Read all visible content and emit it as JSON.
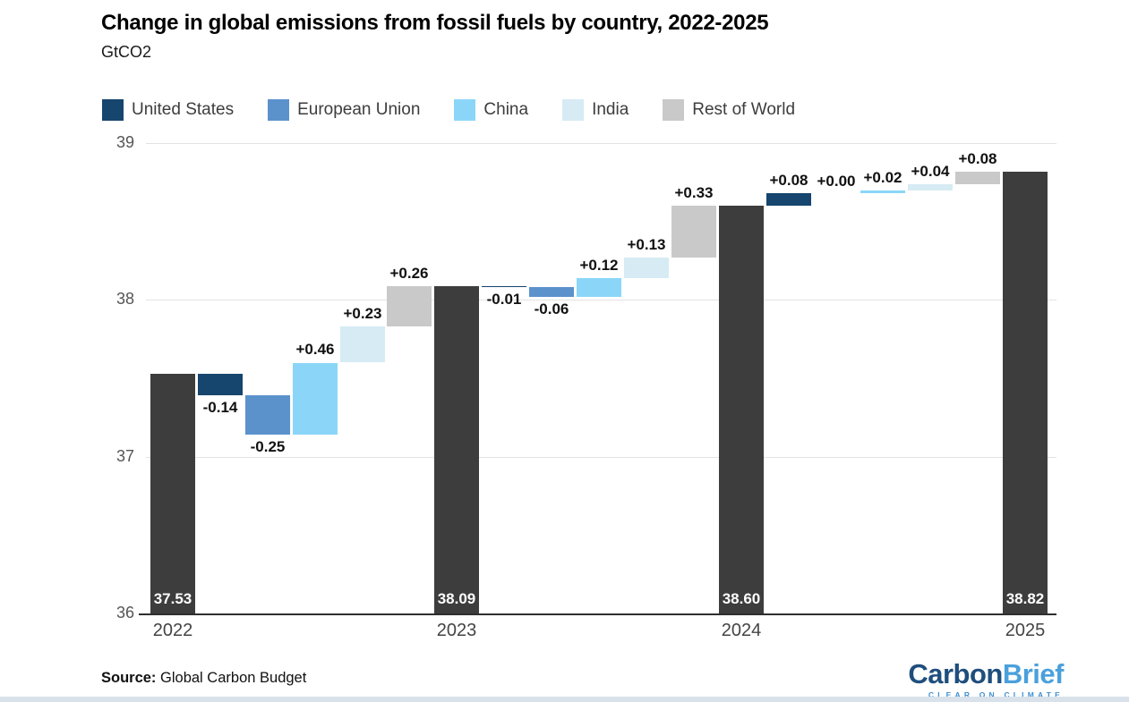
{
  "header": {
    "title": "Change in global emissions from fossil fuels by country, 2022-2025",
    "subtitle": "GtCO2"
  },
  "legend": [
    {
      "label": "United States",
      "color": "#16456d"
    },
    {
      "label": "European Union",
      "color": "#5b92cc"
    },
    {
      "label": "China",
      "color": "#8bd6f8"
    },
    {
      "label": "India",
      "color": "#d6ebf4"
    },
    {
      "label": "Rest of World",
      "color": "#c9c9c9"
    }
  ],
  "colors": {
    "total_bar": "#3d3d3d",
    "gridline": "#e3e3e3",
    "axis_line": "#2f2f2f",
    "delta_label": "#111111",
    "total_label": "#ffffff"
  },
  "chart_data": {
    "type": "bar",
    "variant": "waterfall",
    "title": "Change in global emissions from fossil fuels by country, 2022-2025",
    "ylabel": "GtCO2",
    "ylim": [
      36,
      39
    ],
    "yticks": [
      36,
      37,
      38,
      39
    ],
    "xticks": [
      "2022",
      "2023",
      "2024",
      "2025"
    ],
    "grid": "horizontal",
    "legend_position": "top",
    "totals": [
      {
        "year": "2022",
        "value": 37.53
      },
      {
        "year": "2023",
        "value": 38.09
      },
      {
        "year": "2024",
        "value": 38.6
      },
      {
        "year": "2025",
        "value": 38.82
      }
    ],
    "series_order": [
      "United States",
      "European Union",
      "China",
      "India",
      "Rest of World"
    ],
    "deltas_by_period": [
      {
        "period": "2022-2023",
        "United States": -0.14,
        "European Union": -0.25,
        "China": 0.46,
        "India": 0.23,
        "Rest of World": 0.26
      },
      {
        "period": "2023-2024",
        "United States": -0.01,
        "European Union": -0.06,
        "China": 0.12,
        "India": 0.13,
        "Rest of World": 0.33
      },
      {
        "period": "2024-2025",
        "United States": 0.08,
        "European Union": 0.0,
        "China": 0.02,
        "India": 0.04,
        "Rest of World": 0.08
      }
    ],
    "columns": [
      {
        "kind": "total",
        "series": "Total",
        "start": 36,
        "end": 37.53,
        "label": "37.53",
        "axis_label": "2022"
      },
      {
        "kind": "delta",
        "series": "United States",
        "start": 37.53,
        "end": 37.39,
        "label": "-0.14"
      },
      {
        "kind": "delta",
        "series": "European Union",
        "start": 37.39,
        "end": 37.14,
        "label": "-0.25"
      },
      {
        "kind": "delta",
        "series": "China",
        "start": 37.14,
        "end": 37.6,
        "label": "+0.46"
      },
      {
        "kind": "delta",
        "series": "India",
        "start": 37.6,
        "end": 37.83,
        "label": "+0.23"
      },
      {
        "kind": "delta",
        "series": "Rest of World",
        "start": 37.83,
        "end": 38.09,
        "label": "+0.26"
      },
      {
        "kind": "total",
        "series": "Total",
        "start": 36,
        "end": 38.09,
        "label": "38.09",
        "axis_label": "2023"
      },
      {
        "kind": "delta",
        "series": "United States",
        "start": 38.09,
        "end": 38.08,
        "label": "-0.01"
      },
      {
        "kind": "delta",
        "series": "European Union",
        "start": 38.08,
        "end": 38.02,
        "label": "-0.06"
      },
      {
        "kind": "delta",
        "series": "China",
        "start": 38.02,
        "end": 38.14,
        "label": "+0.12"
      },
      {
        "kind": "delta",
        "series": "India",
        "start": 38.14,
        "end": 38.27,
        "label": "+0.13"
      },
      {
        "kind": "delta",
        "series": "Rest of World",
        "start": 38.27,
        "end": 38.6,
        "label": "+0.33"
      },
      {
        "kind": "total",
        "series": "Total",
        "start": 36,
        "end": 38.6,
        "label": "38.60",
        "axis_label": "2024"
      },
      {
        "kind": "delta",
        "series": "United States",
        "start": 38.6,
        "end": 38.68,
        "label": "+0.08"
      },
      {
        "kind": "delta",
        "series": "European Union",
        "start": 38.68,
        "end": 38.68,
        "label": "+0.00"
      },
      {
        "kind": "delta",
        "series": "China",
        "start": 38.68,
        "end": 38.7,
        "label": "+0.02"
      },
      {
        "kind": "delta",
        "series": "India",
        "start": 38.7,
        "end": 38.74,
        "label": "+0.04"
      },
      {
        "kind": "delta",
        "series": "Rest of World",
        "start": 38.74,
        "end": 38.82,
        "label": "+0.08"
      },
      {
        "kind": "total",
        "series": "Total",
        "start": 36,
        "end": 38.82,
        "label": "38.82",
        "axis_label": "2025"
      }
    ]
  },
  "footer": {
    "source_label": "Source:",
    "source_text": "Global Carbon Budget",
    "logo": {
      "part1": "Carbon",
      "part2": "Brief",
      "tagline": "CLEAR ON CLIMATE"
    }
  }
}
